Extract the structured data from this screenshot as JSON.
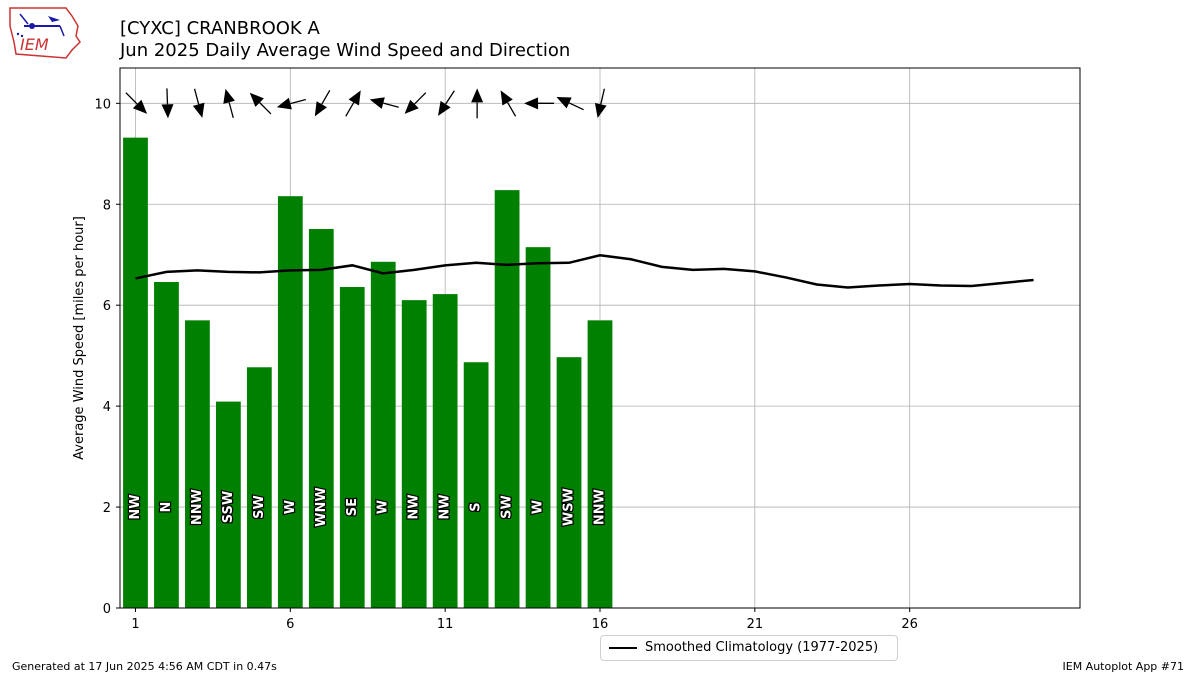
{
  "header": {
    "title_line1": "[CYXC] CRANBROOK A",
    "title_line2": "Jun 2025 Daily Average Wind Speed and Direction"
  },
  "logo": {
    "text": "IEM"
  },
  "footer": {
    "left": "Generated at 17 Jun 2025 4:56 AM CDT in 0.47s",
    "right": "IEM Autoplot App #71"
  },
  "legend": {
    "label": "Smoothed Climatology (1977-2025)"
  },
  "colors": {
    "bar": "#008000",
    "climatology": "#000000",
    "grid": "#b0b0b0"
  },
  "chart_data": {
    "type": "bar",
    "ylabel": "Average Wind Speed [miles per hour]",
    "ylim": [
      0,
      10.7
    ],
    "xlim": [
      0.5,
      31.5
    ],
    "yticks": [
      0,
      2,
      4,
      6,
      8,
      10
    ],
    "xticks": [
      1,
      6,
      11,
      16,
      21,
      26
    ],
    "grid": true,
    "legend_position": "bottom-right",
    "days": [
      1,
      2,
      3,
      4,
      5,
      6,
      7,
      8,
      9,
      10,
      11,
      12,
      13,
      14,
      15,
      16
    ],
    "speeds": [
      9.32,
      6.46,
      5.7,
      4.09,
      4.77,
      8.16,
      7.51,
      6.36,
      6.86,
      6.1,
      6.22,
      4.87,
      8.28,
      7.15,
      4.97,
      5.7
    ],
    "directions": [
      "NW",
      "N",
      "NNW",
      "SSW",
      "SW",
      "W",
      "WNW",
      "SE",
      "W",
      "NW",
      "NW",
      "S",
      "SW",
      "W",
      "WSW",
      "NNW"
    ],
    "arrow_angles_deg": [
      45,
      88,
      75,
      255,
      225,
      165,
      120,
      300,
      195,
      135,
      123,
      270,
      240,
      180,
      205,
      103
    ],
    "climatology": {
      "name": "Smoothed Climatology (1977-2025)",
      "x": [
        1,
        2,
        3,
        4,
        5,
        6,
        7,
        8,
        9,
        10,
        11,
        12,
        13,
        14,
        15,
        16,
        17,
        18,
        19,
        20,
        21,
        22,
        23,
        24,
        25,
        26,
        27,
        28,
        29,
        30
      ],
      "y": [
        6.53,
        6.66,
        6.69,
        6.66,
        6.65,
        6.69,
        6.7,
        6.79,
        6.63,
        6.7,
        6.79,
        6.84,
        6.8,
        6.83,
        6.84,
        6.99,
        6.91,
        6.76,
        6.7,
        6.72,
        6.67,
        6.55,
        6.41,
        6.35,
        6.39,
        6.42,
        6.39,
        6.38,
        6.44,
        6.5
      ]
    }
  }
}
